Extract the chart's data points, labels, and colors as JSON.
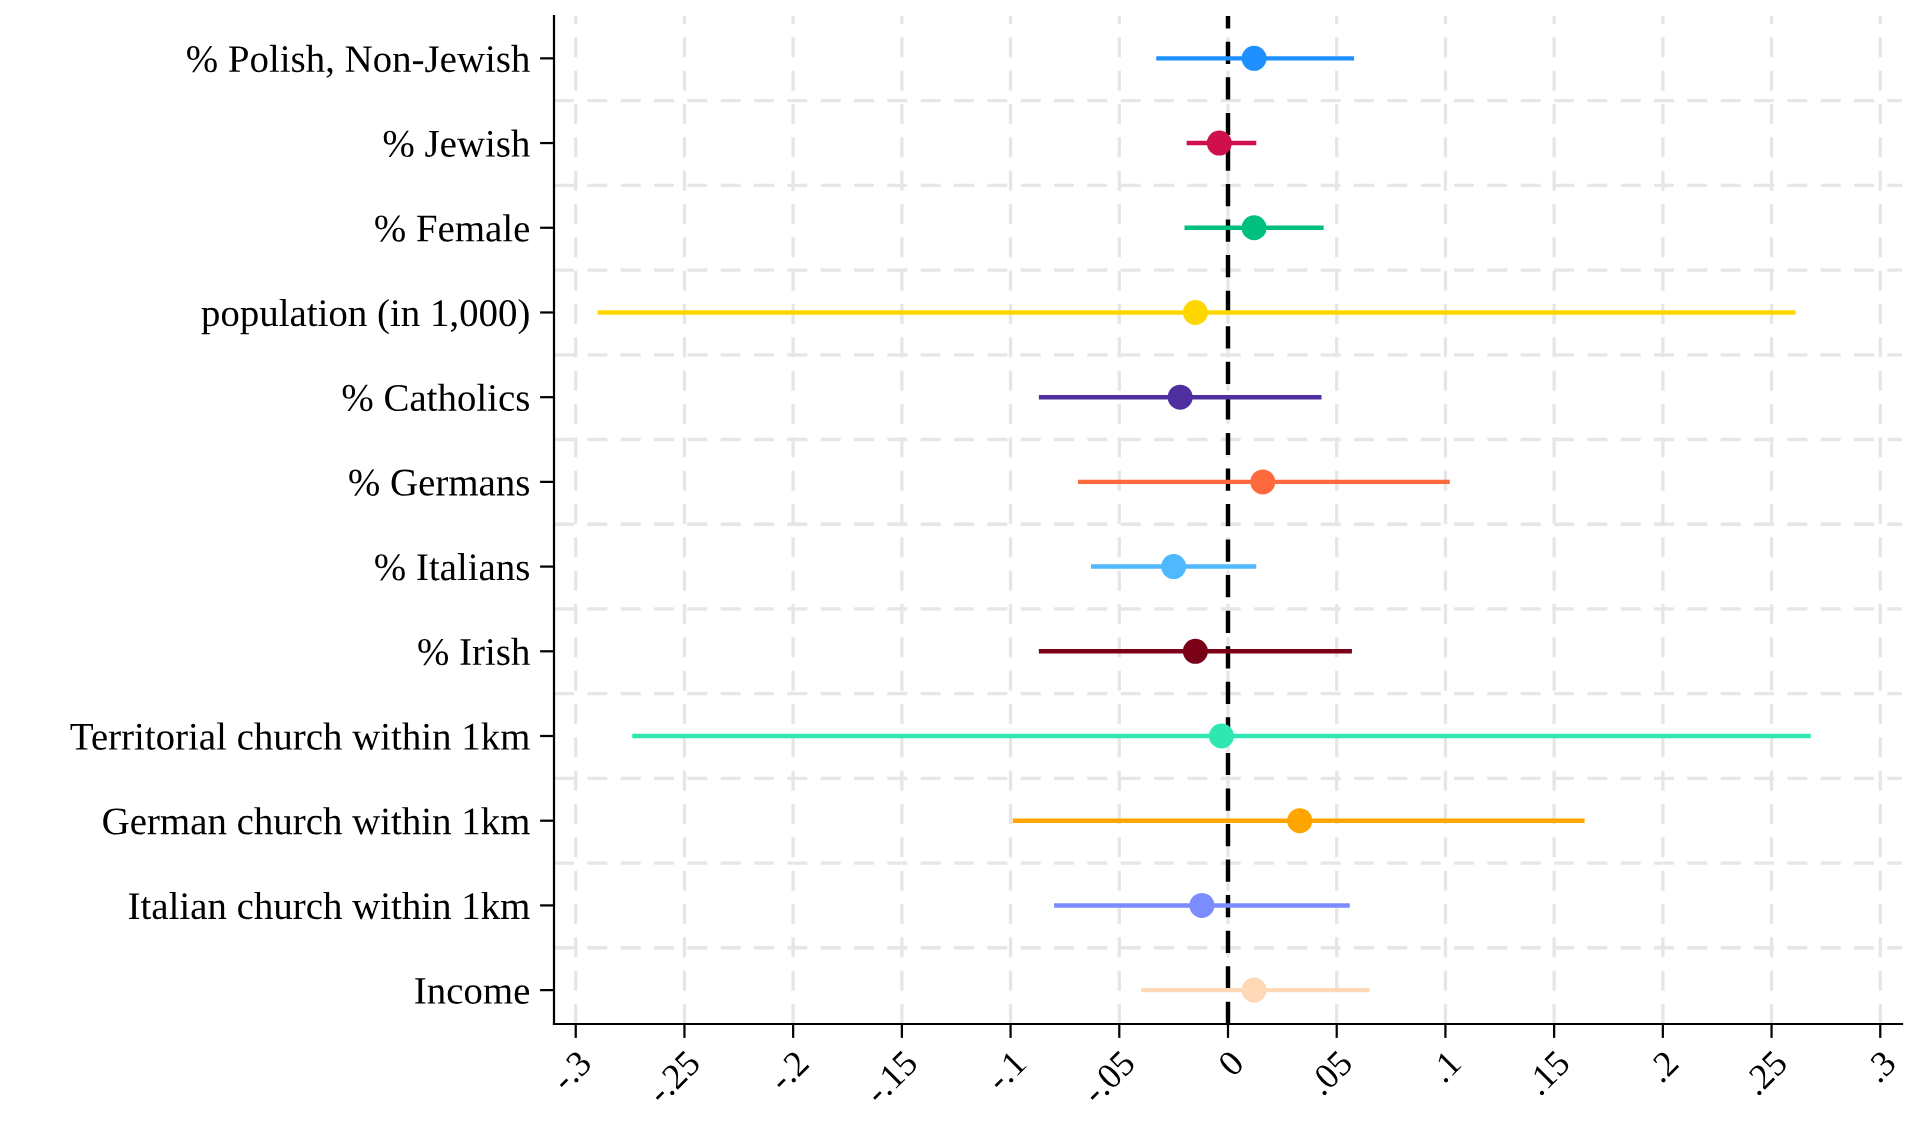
{
  "chart_data": {
    "type": "scatter",
    "orientation": "horizontal",
    "marker": "circle",
    "grid": true,
    "categories": [
      "% Polish, Non-Jewish",
      "% Jewish",
      "% Female",
      "population (in 1,000)",
      "% Catholics",
      "% Germans",
      "% Italians",
      "% Irish",
      "Territorial church within 1km",
      "German church within 1km",
      "Italian church within 1km",
      "Income"
    ],
    "values": [
      0.012,
      -0.004,
      0.012,
      -0.015,
      -0.022,
      0.016,
      -0.025,
      -0.015,
      -0.003,
      0.033,
      -0.012,
      0.012
    ],
    "errors": [
      [
        -0.033,
        0.058
      ],
      [
        -0.019,
        0.013
      ],
      [
        -0.02,
        0.044
      ],
      [
        -0.29,
        0.261
      ],
      [
        -0.087,
        0.043
      ],
      [
        -0.069,
        0.102
      ],
      [
        -0.063,
        0.013
      ],
      [
        -0.087,
        0.057
      ],
      [
        -0.274,
        0.268
      ],
      [
        -0.099,
        0.164
      ],
      [
        -0.08,
        0.056
      ],
      [
        -0.04,
        0.065
      ]
    ],
    "colors": [
      "#1e90ff",
      "#d0104c",
      "#00c07f",
      "#ffd700",
      "#5030a0",
      "#ff6a3d",
      "#4fb8ff",
      "#7a0018",
      "#2ee8b0",
      "#ffa500",
      "#7b8cff",
      "#ffd8b8"
    ],
    "xlim": [
      -0.31,
      0.31
    ],
    "xticks": [
      {
        "value": -0.3,
        "label": "-.3"
      },
      {
        "value": -0.25,
        "label": "-.25"
      },
      {
        "value": -0.2,
        "label": "-.2"
      },
      {
        "value": -0.15,
        "label": "-.15"
      },
      {
        "value": -0.1,
        "label": "-.1"
      },
      {
        "value": -0.05,
        "label": "-.05"
      },
      0,
      {
        "value": 0.05,
        "label": ".05"
      },
      {
        "value": 0.1,
        "label": ".1"
      },
      {
        "value": 0.15,
        "label": ".15"
      },
      {
        "value": 0.2,
        "label": ".2"
      },
      {
        "value": 0.25,
        "label": ".25"
      },
      {
        "value": 0.3,
        "label": ".3"
      }
    ],
    "ref_lines": [
      {
        "axis": "x",
        "value": 0,
        "color": "#000000",
        "line_style": "dashed"
      }
    ]
  }
}
